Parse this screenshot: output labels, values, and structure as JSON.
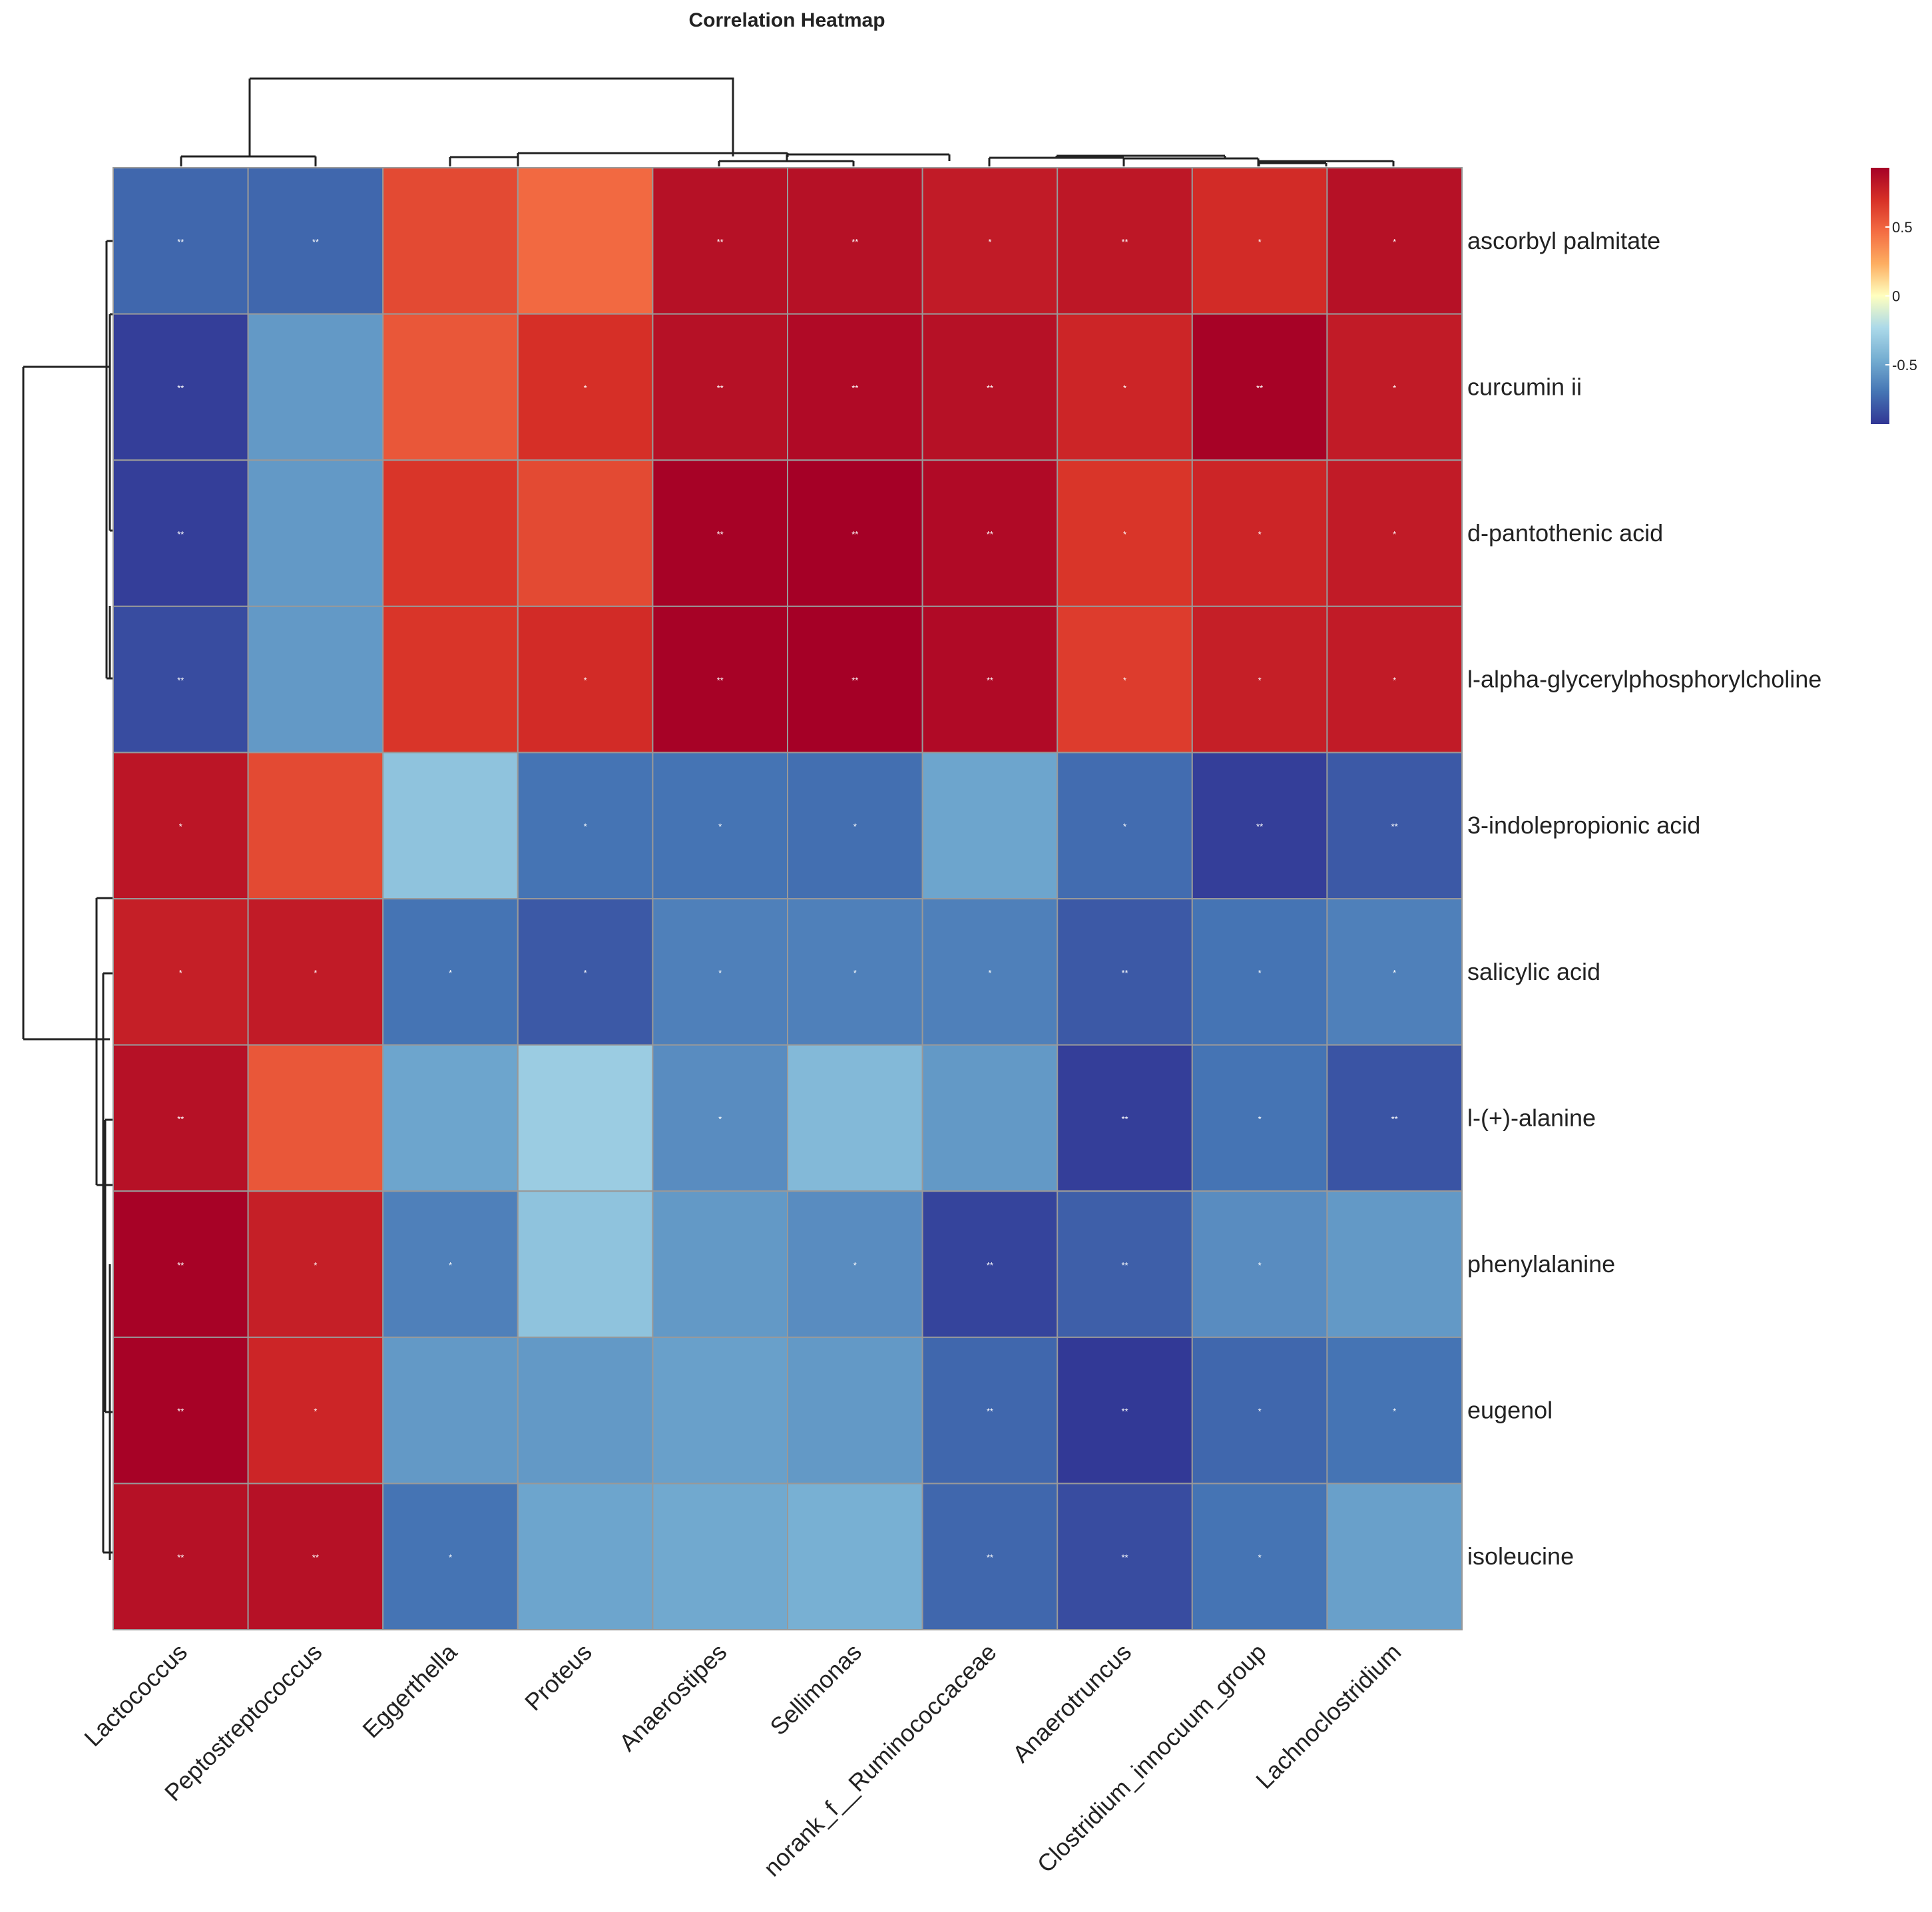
{
  "chart_data": {
    "type": "heatmap",
    "title": "Correlation Heatmap",
    "xlabel": "",
    "ylabel": "",
    "columns": [
      "Lactococcus",
      "Peptostreptococcus",
      "Eggerthella",
      "Proteus",
      "Anaerostipes",
      "Sellimonas",
      "norank_f__Ruminococcaceae",
      "Anaerotruncus",
      "Clostridium_innocuum_group",
      "Lachnoclostridium"
    ],
    "rows": [
      "ascorbyl palmitate",
      "curcumin ii",
      "d-pantothenic acid",
      "l-alpha-glycerylphosphorylcholine",
      "3-indolepropionic acid",
      "salicylic acid",
      "l-(+)-alanine",
      "phenylalanine",
      "eugenol",
      "isoleucine"
    ],
    "values": [
      [
        -0.75,
        -0.75,
        0.6,
        0.48,
        0.85,
        0.85,
        0.8,
        0.82,
        0.72,
        0.85
      ],
      [
        -0.9,
        -0.55,
        0.55,
        0.7,
        0.85,
        0.88,
        0.85,
        0.75,
        0.92,
        0.8
      ],
      [
        -0.9,
        -0.55,
        0.68,
        0.6,
        0.92,
        0.93,
        0.88,
        0.68,
        0.75,
        0.8
      ],
      [
        -0.85,
        -0.55,
        0.68,
        0.72,
        0.92,
        0.93,
        0.88,
        0.65,
        0.78,
        0.8
      ],
      [
        0.83,
        0.6,
        -0.35,
        -0.7,
        -0.7,
        -0.72,
        -0.5,
        -0.73,
        -0.9,
        -0.8
      ],
      [
        0.78,
        0.8,
        -0.7,
        -0.8,
        -0.65,
        -0.65,
        -0.65,
        -0.8,
        -0.7,
        -0.65
      ],
      [
        0.85,
        0.55,
        -0.5,
        -0.3,
        -0.6,
        -0.4,
        -0.55,
        -0.9,
        -0.7,
        -0.82
      ],
      [
        0.92,
        0.78,
        -0.65,
        -0.35,
        -0.55,
        -0.6,
        -0.88,
        -0.78,
        -0.6,
        -0.55
      ],
      [
        0.92,
        0.75,
        -0.55,
        -0.55,
        -0.52,
        -0.55,
        -0.75,
        -0.92,
        -0.75,
        -0.7
      ],
      [
        0.85,
        0.85,
        -0.7,
        -0.5,
        -0.48,
        -0.45,
        -0.75,
        -0.85,
        -0.7,
        -0.52
      ]
    ],
    "significance": [
      [
        "**",
        "**",
        "",
        "",
        "**",
        "**",
        "*",
        "**",
        "*",
        "*"
      ],
      [
        "**",
        "",
        "",
        "*",
        "**",
        "**",
        "**",
        "*",
        "**",
        "*"
      ],
      [
        "**",
        "",
        "",
        "",
        "**",
        "**",
        "**",
        "*",
        "*",
        "*"
      ],
      [
        "**",
        "",
        "",
        "*",
        "**",
        "**",
        "**",
        "*",
        "*",
        "*"
      ],
      [
        "*",
        "",
        "",
        "*",
        "*",
        "*",
        "",
        "*",
        "**",
        "**"
      ],
      [
        "*",
        "*",
        "*",
        "*",
        "*",
        "*",
        "*",
        "**",
        "*",
        "*"
      ],
      [
        "**",
        "",
        "",
        "",
        "*",
        "",
        "",
        "**",
        "*",
        "**"
      ],
      [
        "**",
        "*",
        "*",
        "",
        "",
        "*",
        "**",
        "**",
        "*",
        ""
      ],
      [
        "**",
        "*",
        "",
        "",
        "",
        "",
        "**",
        "**",
        "*",
        "*"
      ],
      [
        "**",
        "**",
        "*",
        "",
        "",
        "",
        "**",
        "**",
        "*",
        ""
      ]
    ],
    "color_scale": {
      "low": "#313695",
      "mid": "#FFFFBF",
      "high": "#A50026",
      "stops": [
        "#313695",
        "#4575B4",
        "#74ADD1",
        "#ABD9E9",
        "#FFFFBF",
        "#FDAE61",
        "#F46D43",
        "#D73027",
        "#A50026"
      ]
    },
    "colorbar": {
      "range": [
        -0.93,
        0.93
      ],
      "ticks": [
        0.5,
        0,
        -0.5
      ],
      "tick_labels": [
        "0.5",
        "0",
        "-0.5"
      ],
      "position": "top-right"
    },
    "column_dendrogram": true,
    "row_dendrogram": true,
    "grid_color": "#999999",
    "text_color": "#222222"
  }
}
